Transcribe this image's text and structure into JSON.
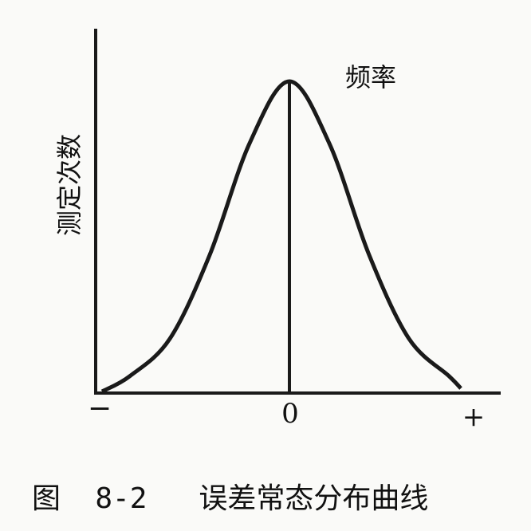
{
  "chart_data": {
    "type": "line",
    "title": "",
    "ylabel": "测定次数",
    "curve_label": "频率",
    "xticks": [
      "−",
      "0",
      "+"
    ],
    "xlim": [
      -3.0,
      3.0
    ],
    "ylim": [
      0,
      1.0
    ],
    "grid": false,
    "series": [
      {
        "name": "",
        "x": [
          -2.35,
          -2.0,
          -1.5,
          -1.0,
          -0.5,
          0.0,
          0.5,
          1.0,
          1.5,
          2.0,
          2.15
        ],
        "y": [
          0.0,
          0.05,
          0.17,
          0.44,
          0.8,
          1.0,
          0.8,
          0.44,
          0.17,
          0.05,
          0.01
        ]
      }
    ]
  },
  "caption": {
    "label": "图  8-2",
    "text": "误差常态分布曲线"
  },
  "colors": {
    "ink": "#1a1a1a",
    "background": "#fafaf8"
  }
}
